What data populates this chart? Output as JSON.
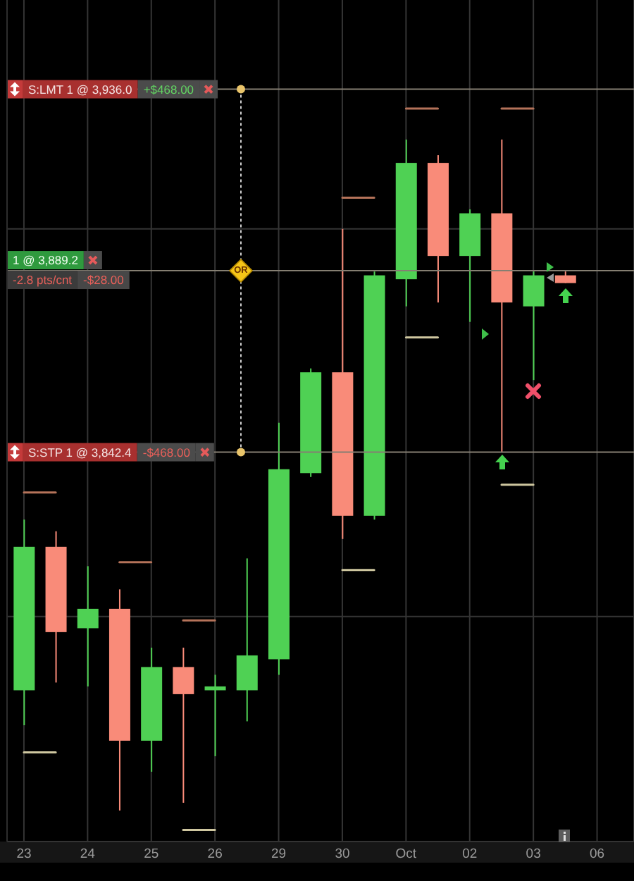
{
  "chart_data": {
    "type": "candlestick",
    "categories": [
      "23",
      null,
      "24",
      null,
      "25",
      null,
      "26",
      null,
      "29",
      null,
      "30",
      null,
      "Oct",
      null,
      "02",
      null,
      "03",
      null,
      "06"
    ],
    "ohlc": [
      [
        3781,
        3825,
        3772,
        3818
      ],
      [
        3818,
        3822,
        3783,
        3796
      ],
      [
        3797,
        3813,
        3782,
        3802
      ],
      [
        3802,
        3807,
        3750,
        3768
      ],
      [
        3768,
        3792,
        3760,
        3787
      ],
      [
        3787,
        3792,
        3752,
        3780
      ],
      [
        3781,
        3785,
        3764,
        3782
      ],
      [
        3781,
        3815,
        3773,
        3790
      ],
      [
        3789,
        3850,
        3785,
        3838
      ],
      [
        3837,
        3864,
        3836,
        3863
      ],
      [
        3863,
        3900,
        3820,
        3826
      ],
      [
        3826,
        3889,
        3825,
        3888
      ],
      [
        3887,
        3923,
        3880,
        3917
      ],
      [
        3917,
        3919,
        3881,
        3893
      ],
      [
        3893,
        3905,
        3876,
        3904
      ],
      [
        3904,
        3923,
        3842.4,
        3881
      ],
      [
        3880,
        3889,
        3861,
        3888
      ],
      [
        3888,
        3889,
        3886,
        3886
      ],
      null
    ],
    "colors": [
      "#4fd154",
      "#f98b79",
      "#4fd154",
      "#f98b79",
      "#4fd154",
      "#f98b79",
      "#4fd154",
      "#4fd154",
      "#4fd154",
      "#4fd154",
      "#f98b79",
      "#4fd154",
      "#4fd154",
      "#f98b79",
      "#4fd154",
      "#f98b79",
      "#4fd154",
      "#f98b79",
      null
    ],
    "series": [
      {
        "type": "line",
        "color": "#b5735a",
        "values": [
          3832,
          3832,
          null,
          3814,
          3814,
          null,
          null,
          null,
          null,
          null,
          3908,
          3908,
          null,
          null,
          null,
          3931,
          3931,
          null,
          null
        ]
      },
      {
        "type": "line",
        "color": "#b5735a",
        "values": [
          null,
          null,
          null,
          null,
          null,
          3799,
          3799,
          null,
          null,
          null,
          null,
          null,
          3931,
          3931,
          null,
          null,
          null,
          null,
          null
        ]
      },
      {
        "type": "line",
        "color": "#cfc7a0",
        "values": [
          3765,
          3765,
          null,
          null,
          null,
          3745,
          3745,
          null,
          null,
          null,
          3812,
          3812,
          null,
          null,
          null,
          3834,
          3834,
          null,
          null
        ]
      },
      {
        "type": "line",
        "color": "#cfc7a0",
        "values": [
          null,
          null,
          null,
          null,
          null,
          null,
          null,
          null,
          null,
          null,
          null,
          null,
          3872,
          3872,
          null,
          null,
          null,
          null,
          null
        ]
      }
    ],
    "ylim": [
      3742,
      3959
    ],
    "yticks": [
      {
        "value": 3800,
        "label": null
      },
      {
        "value": 3900,
        "label": null
      }
    ],
    "grid": true,
    "tick_labels": "x",
    "ref_lines": [
      {
        "axis": "y",
        "value": 3936.0,
        "label": "S:LMT 1 @ 3,936.0",
        "color": "#857f72"
      },
      {
        "axis": "y",
        "value": 3889.2,
        "label": "1 @ 3,889.2",
        "color": "#857f72"
      },
      {
        "axis": "y",
        "value": 3842.4,
        "label": "S:STP 1 @ 3,842.4",
        "color": "#857f72"
      }
    ],
    "annotations": [
      {
        "text": "+$468.00",
        "y": 3936.0
      },
      {
        "text": "-2.8 pts/cnt",
        "y": 3889.2
      },
      {
        "text": "-$28.00",
        "y": 3889.2
      },
      {
        "text": "OR",
        "y": 3889.2
      },
      {
        "text": "-$468.00",
        "y": 3842.4
      }
    ]
  }
}
